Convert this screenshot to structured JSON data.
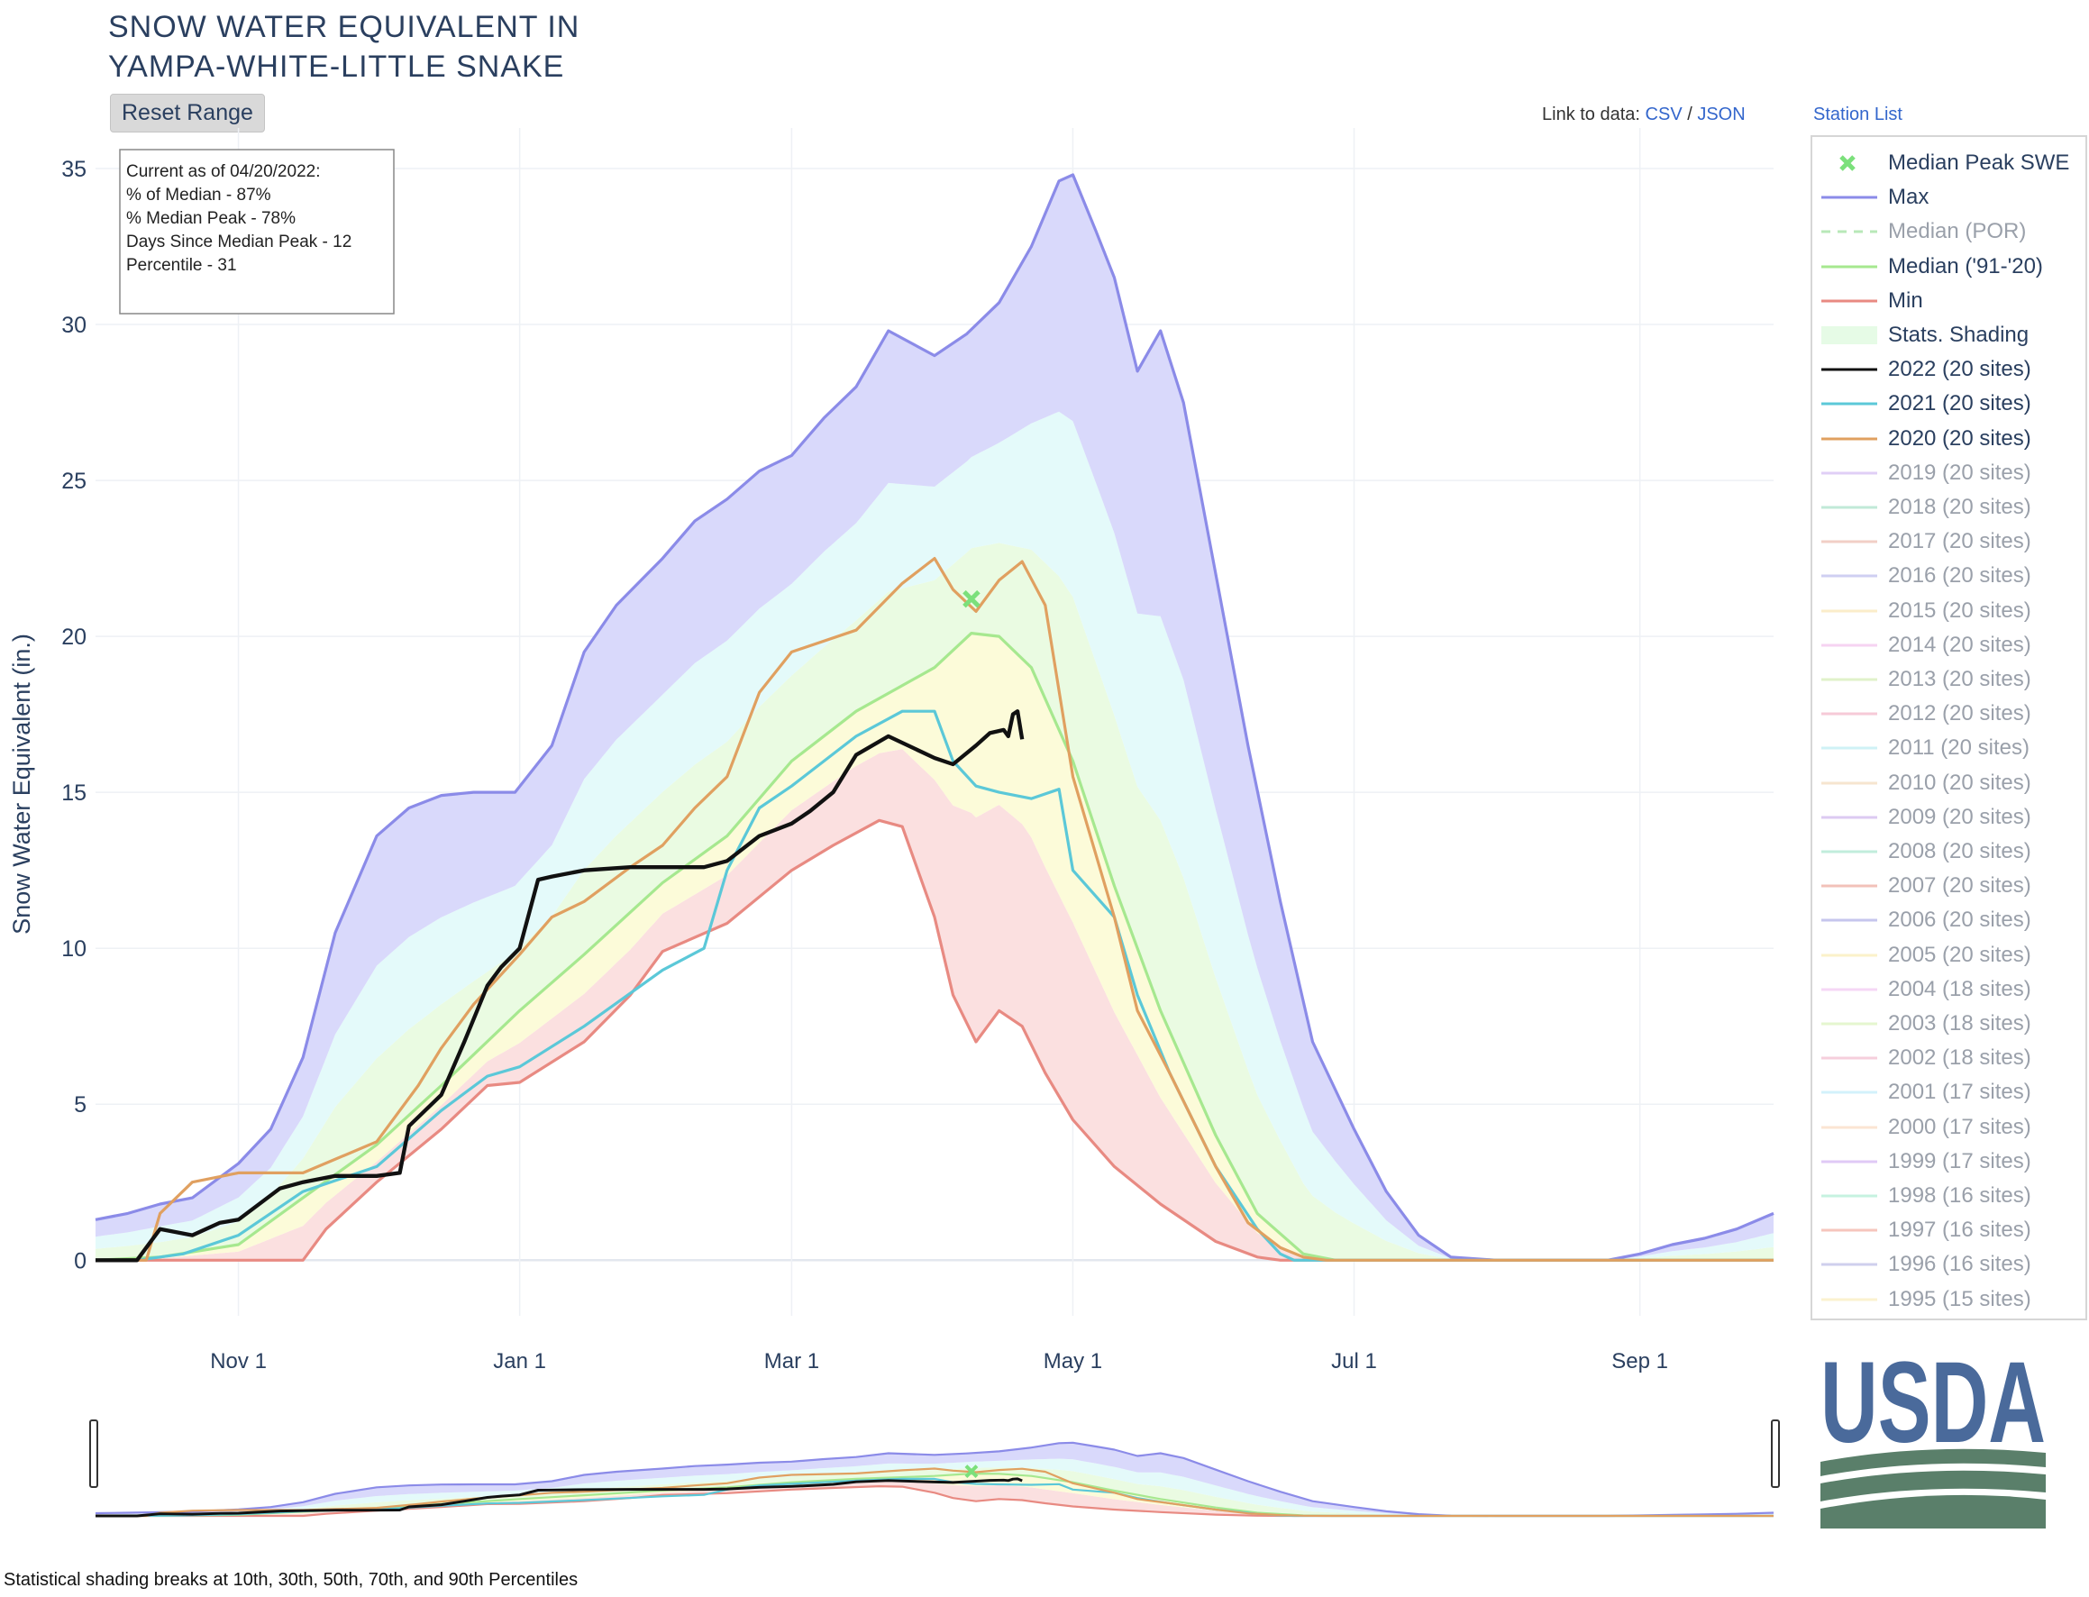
{
  "header": {
    "title_line1": "SNOW WATER EQUIVALENT IN",
    "title_line2": "YAMPA-WHITE-LITTLE SNAKE",
    "reset_label": "Reset Range",
    "link_prefix": "Link to data:",
    "csv_label": "CSV",
    "slash": "/",
    "json_label": "JSON",
    "station_list_label": "Station List"
  },
  "info_box": {
    "line1": "Current as of 04/20/2022:",
    "line2": "% of Median - 87%",
    "line3": "% Median Peak - 78%",
    "line4": "Days Since Median Peak - 12",
    "line5": "Percentile - 31"
  },
  "footnote": "Statistical shading breaks at 10th, 30th, 50th, 70th, and 90th Percentiles",
  "logo_text": "USDA",
  "legend": [
    {
      "label": "Median Peak SWE",
      "color": "#7be07b",
      "kind": "x",
      "active": true
    },
    {
      "label": "Max",
      "color": "#8b8be8",
      "kind": "line",
      "active": true
    },
    {
      "label": "Median (POR)",
      "color": "#b8e8b8",
      "kind": "dash",
      "active": false
    },
    {
      "label": "Median ('91-'20)",
      "color": "#a6e88f",
      "kind": "line",
      "active": true
    },
    {
      "label": "Min",
      "color": "#e88a82",
      "kind": "line",
      "active": true
    },
    {
      "label": "Stats. Shading",
      "color": "#e6fbe6",
      "kind": "box",
      "active": true
    },
    {
      "label": "2022 (20 sites)",
      "color": "#111111",
      "kind": "line",
      "active": true
    },
    {
      "label": "2021 (20 sites)",
      "color": "#5bc8d8",
      "kind": "line",
      "active": true
    },
    {
      "label": "2020 (20 sites)",
      "color": "#e0a060",
      "kind": "line",
      "active": true
    },
    {
      "label": "2019 (20 sites)",
      "color": "#c8a8f0",
      "kind": "line",
      "active": false
    },
    {
      "label": "2018 (20 sites)",
      "color": "#90d8b8",
      "kind": "line",
      "active": false
    },
    {
      "label": "2017 (20 sites)",
      "color": "#e8a898",
      "kind": "line",
      "active": false
    },
    {
      "label": "2016 (20 sites)",
      "color": "#a8a8e8",
      "kind": "line",
      "active": false
    },
    {
      "label": "2015 (20 sites)",
      "color": "#f8e0a0",
      "kind": "line",
      "active": false
    },
    {
      "label": "2014 (20 sites)",
      "color": "#f0b0e8",
      "kind": "line",
      "active": false
    },
    {
      "label": "2013 (20 sites)",
      "color": "#c8e8a0",
      "kind": "line",
      "active": false
    },
    {
      "label": "2012 (20 sites)",
      "color": "#f0a0b8",
      "kind": "line",
      "active": false
    },
    {
      "label": "2011 (20 sites)",
      "color": "#a8e8f0",
      "kind": "line",
      "active": false
    },
    {
      "label": "2010 (20 sites)",
      "color": "#f0d0a8",
      "kind": "line",
      "active": false
    },
    {
      "label": "2009 (20 sites)",
      "color": "#c0a0e8",
      "kind": "line",
      "active": false
    },
    {
      "label": "2008 (20 sites)",
      "color": "#90e0c0",
      "kind": "line",
      "active": false
    },
    {
      "label": "2007 (20 sites)",
      "color": "#e89080",
      "kind": "line",
      "active": false
    },
    {
      "label": "2006 (20 sites)",
      "color": "#9898e0",
      "kind": "line",
      "active": false
    },
    {
      "label": "2005 (20 sites)",
      "color": "#f8e8a0",
      "kind": "line",
      "active": false
    },
    {
      "label": "2004 (18 sites)",
      "color": "#f0b8f0",
      "kind": "line",
      "active": false
    },
    {
      "label": "2003 (18 sites)",
      "color": "#d0f0a8",
      "kind": "line",
      "active": false
    },
    {
      "label": "2002 (18 sites)",
      "color": "#f0a8c0",
      "kind": "line",
      "active": false
    },
    {
      "label": "2001 (17 sites)",
      "color": "#b0e8f8",
      "kind": "line",
      "active": false
    },
    {
      "label": "2000 (17 sites)",
      "color": "#f8d0b0",
      "kind": "line",
      "active": false
    },
    {
      "label": "1999 (17 sites)",
      "color": "#c8a0f0",
      "kind": "line",
      "active": false
    },
    {
      "label": "1998 (16 sites)",
      "color": "#98e8c8",
      "kind": "line",
      "active": false
    },
    {
      "label": "1997 (16 sites)",
      "color": "#f09888",
      "kind": "line",
      "active": false
    },
    {
      "label": "1996 (16 sites)",
      "color": "#a8a8e0",
      "kind": "line",
      "active": false
    },
    {
      "label": "1995 (15 sites)",
      "color": "#f8e8a8",
      "kind": "line",
      "active": false
    }
  ],
  "chart_data": {
    "type": "line",
    "title": "SNOW WATER EQUIVALENT IN YAMPA-WHITE-LITTLE SNAKE",
    "ylabel": "Snow Water Equivalent (in.)",
    "xlabel": "",
    "xlim": [
      "10-01",
      "09-30"
    ],
    "ylim": [
      -2,
      36.5
    ],
    "yticks": [
      0,
      5,
      10,
      15,
      20,
      25,
      30,
      35
    ],
    "xticks": [
      {
        "label": "Nov 1",
        "date": "11-01"
      },
      {
        "label": "Jan 1",
        "date": "01-01"
      },
      {
        "label": "Mar 1",
        "date": "03-01"
      },
      {
        "label": "May 1",
        "date": "05-01"
      },
      {
        "label": "Jul 1",
        "date": "07-01"
      },
      {
        "label": "Sep 1",
        "date": "09-01"
      }
    ],
    "grid": true,
    "legend_position": "right",
    "median_peak": {
      "date": "04-09",
      "value": 21.2
    },
    "series": [
      {
        "name": "Max",
        "color": "#8b8be8",
        "x": [
          "10-01",
          "10-08",
          "10-15",
          "10-22",
          "11-01",
          "11-08",
          "11-15",
          "11-22",
          "12-01",
          "12-08",
          "12-15",
          "12-22",
          "12-31",
          "01-08",
          "01-15",
          "01-22",
          "02-01",
          "02-08",
          "02-15",
          "02-22",
          "03-01",
          "03-08",
          "03-15",
          "03-22",
          "04-01",
          "04-08",
          "04-15",
          "04-22",
          "04-28",
          "05-01",
          "05-06",
          "05-10",
          "05-15",
          "05-20",
          "05-25",
          "06-01",
          "06-08",
          "06-15",
          "06-22",
          "07-01",
          "07-08",
          "07-15",
          "07-22",
          "08-01",
          "08-15",
          "08-25",
          "09-01",
          "09-08",
          "09-15",
          "09-22",
          "09-30"
        ],
        "y": [
          1.3,
          1.5,
          1.8,
          2.0,
          3.1,
          4.2,
          6.5,
          10.5,
          13.6,
          14.5,
          14.9,
          15.0,
          15.0,
          16.5,
          19.5,
          21.0,
          22.5,
          23.7,
          24.4,
          25.3,
          25.8,
          27.0,
          28.0,
          29.8,
          29.0,
          29.7,
          30.7,
          32.5,
          34.6,
          34.8,
          33.0,
          31.5,
          28.5,
          29.8,
          27.5,
          22.0,
          16.5,
          11.5,
          7.0,
          4.2,
          2.2,
          0.8,
          0.1,
          0.0,
          0.0,
          0.0,
          0.2,
          0.5,
          0.7,
          1.0,
          1.5
        ]
      },
      {
        "name": "Median ('91-'20)",
        "color": "#a6e88f",
        "x": [
          "10-01",
          "10-15",
          "11-01",
          "11-15",
          "12-01",
          "12-15",
          "01-01",
          "01-15",
          "02-01",
          "02-15",
          "03-01",
          "03-15",
          "04-01",
          "04-09",
          "04-15",
          "04-22",
          "05-01",
          "05-10",
          "05-20",
          "06-01",
          "06-10",
          "06-20",
          "06-27",
          "07-01",
          "09-30"
        ],
        "y": [
          0.0,
          0.1,
          0.5,
          2.0,
          3.7,
          5.6,
          8.0,
          9.8,
          12.1,
          13.6,
          16.0,
          17.6,
          19.0,
          20.1,
          20.0,
          19.0,
          16.0,
          12.0,
          8.0,
          4.0,
          1.5,
          0.2,
          0.0,
          0.0,
          0.0
        ]
      },
      {
        "name": "Min",
        "color": "#e88a82",
        "x": [
          "10-01",
          "11-15",
          "11-20",
          "12-01",
          "12-15",
          "12-25",
          "01-01",
          "01-15",
          "01-25",
          "02-01",
          "02-15",
          "03-01",
          "03-10",
          "03-20",
          "03-25",
          "04-01",
          "04-05",
          "04-10",
          "04-15",
          "04-20",
          "04-25",
          "05-01",
          "05-10",
          "05-20",
          "06-01",
          "06-10",
          "06-15",
          "09-30"
        ],
        "y": [
          0.0,
          0.0,
          1.0,
          2.5,
          4.2,
          5.6,
          5.7,
          7.0,
          8.5,
          9.9,
          10.8,
          12.5,
          13.3,
          14.1,
          13.9,
          11.0,
          8.5,
          7.0,
          8.0,
          7.5,
          6.0,
          4.5,
          3.0,
          1.8,
          0.6,
          0.1,
          0.0,
          0.0
        ]
      },
      {
        "name": "2022 (20 sites)",
        "color": "#111111",
        "x": [
          "10-01",
          "10-10",
          "10-15",
          "10-22",
          "10-28",
          "11-01",
          "11-10",
          "11-15",
          "11-22",
          "12-01",
          "12-06",
          "12-08",
          "12-15",
          "12-20",
          "12-25",
          "12-28",
          "01-01",
          "01-05",
          "01-08",
          "01-15",
          "01-25",
          "02-01",
          "02-10",
          "02-15",
          "02-22",
          "03-01",
          "03-05",
          "03-10",
          "03-15",
          "03-22",
          "04-01",
          "04-05",
          "04-10",
          "04-13",
          "04-16",
          "04-17",
          "04-18",
          "04-19",
          "04-20"
        ],
        "y": [
          0.0,
          0.0,
          1.0,
          0.8,
          1.2,
          1.3,
          2.3,
          2.5,
          2.7,
          2.7,
          2.8,
          4.3,
          5.3,
          7.0,
          8.8,
          9.4,
          10.0,
          12.2,
          12.3,
          12.5,
          12.6,
          12.6,
          12.6,
          12.8,
          13.6,
          14.0,
          14.4,
          15.0,
          16.2,
          16.8,
          16.1,
          15.9,
          16.5,
          16.9,
          17.0,
          16.8,
          17.5,
          17.6,
          16.7
        ]
      },
      {
        "name": "2021 (20 sites)",
        "color": "#5bc8d8",
        "x": [
          "10-01",
          "10-10",
          "10-20",
          "11-01",
          "11-15",
          "12-01",
          "12-15",
          "12-25",
          "01-01",
          "01-15",
          "02-01",
          "02-10",
          "02-15",
          "02-22",
          "03-01",
          "03-15",
          "03-25",
          "04-01",
          "04-05",
          "04-10",
          "04-15",
          "04-22",
          "04-28",
          "05-01",
          "05-10",
          "05-15",
          "05-22",
          "06-01",
          "06-10",
          "06-15",
          "06-18",
          "09-30"
        ],
        "y": [
          0.0,
          0.0,
          0.2,
          0.8,
          2.2,
          3.0,
          4.8,
          5.9,
          6.2,
          7.5,
          9.3,
          10.0,
          12.5,
          14.5,
          15.2,
          16.8,
          17.6,
          17.6,
          16.0,
          15.2,
          15.0,
          14.8,
          15.1,
          12.5,
          11.0,
          8.5,
          6.0,
          3.0,
          1.0,
          0.2,
          0.0,
          0.0
        ]
      },
      {
        "name": "2020 (20 sites)",
        "color": "#e0a060",
        "x": [
          "10-01",
          "10-12",
          "10-15",
          "10-22",
          "11-01",
          "11-15",
          "12-01",
          "12-10",
          "12-15",
          "12-22",
          "01-01",
          "01-08",
          "01-15",
          "01-25",
          "02-01",
          "02-08",
          "02-15",
          "02-22",
          "03-01",
          "03-15",
          "03-25",
          "04-01",
          "04-05",
          "04-10",
          "04-15",
          "04-20",
          "04-25",
          "05-01",
          "05-10",
          "05-15",
          "05-22",
          "06-01",
          "06-08",
          "06-15",
          "06-20",
          "06-25",
          "09-30"
        ],
        "y": [
          0.0,
          0.0,
          1.5,
          2.5,
          2.8,
          2.8,
          3.8,
          5.6,
          6.8,
          8.2,
          9.8,
          11.0,
          11.5,
          12.6,
          13.3,
          14.5,
          15.5,
          18.2,
          19.5,
          20.2,
          21.7,
          22.5,
          21.5,
          20.8,
          21.8,
          22.4,
          21.0,
          15.5,
          11.0,
          8.0,
          6.0,
          3.0,
          1.2,
          0.4,
          0.1,
          0.0,
          0.0
        ]
      }
    ],
    "bands": [
      {
        "name": "10th-30th Percentile",
        "color": "#fbe0e0"
      },
      {
        "name": "30th-50th Percentile",
        "color": "#fcfbd9"
      },
      {
        "name": "50th-70th Percentile",
        "color": "#eafbe2"
      },
      {
        "name": "70th-90th Percentile",
        "color": "#e4fafa"
      },
      {
        "name": "90th Percentile-Max",
        "color": "#d9d9fb"
      }
    ]
  }
}
